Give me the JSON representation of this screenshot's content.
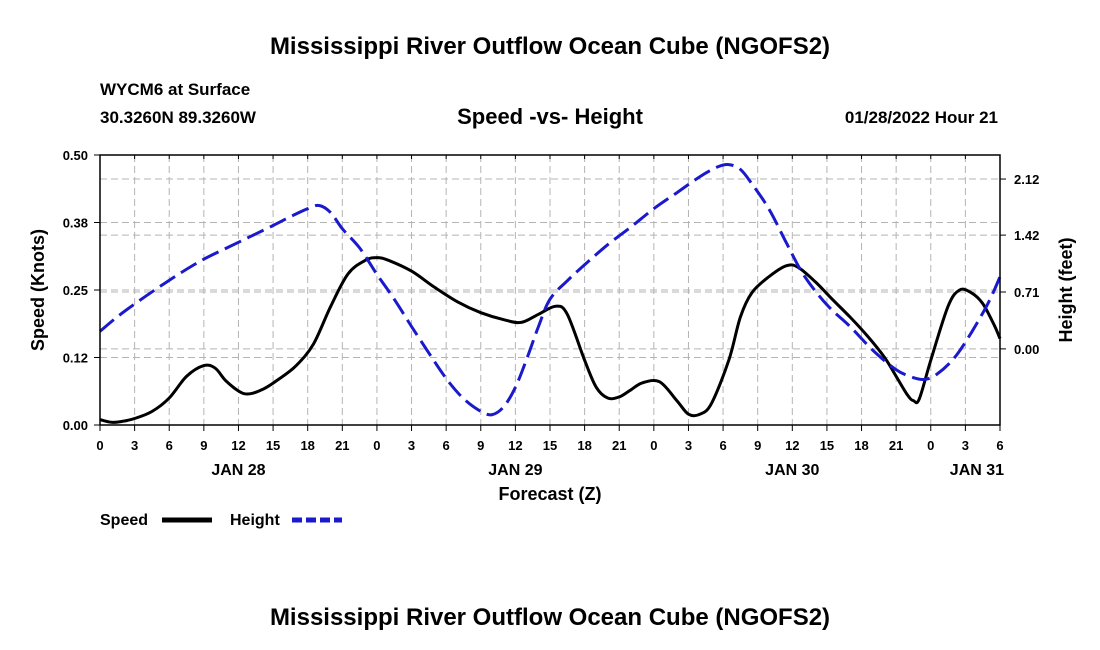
{
  "page": {
    "title_top": "Mississippi River Outflow Ocean Cube (NGOFS2)",
    "station": "WYCM6 at Surface",
    "coords": "30.3260N  89.3260W",
    "datetime": "01/28/2022 Hour 21",
    "title_bottom": "Mississippi River Outflow Ocean Cube (NGOFS2)"
  },
  "chart_data": {
    "type": "line",
    "title": "Speed -vs- Height",
    "xlabel": "Forecast (Z)",
    "ylabel_left": "Speed (Knots)",
    "ylabel_right": "Height (feet)",
    "x_range": [
      0,
      78
    ],
    "ylim_left": [
      0,
      0.5
    ],
    "ylim_right": [
      -0.95,
      2.42
    ],
    "grid": true,
    "legend_position": "bottom-left",
    "x_ticks": [
      {
        "x": 0,
        "label": "0"
      },
      {
        "x": 3,
        "label": "3"
      },
      {
        "x": 6,
        "label": "6"
      },
      {
        "x": 9,
        "label": "9"
      },
      {
        "x": 12,
        "label": "12"
      },
      {
        "x": 15,
        "label": "15"
      },
      {
        "x": 18,
        "label": "18"
      },
      {
        "x": 21,
        "label": "21"
      },
      {
        "x": 24,
        "label": "0"
      },
      {
        "x": 27,
        "label": "3"
      },
      {
        "x": 30,
        "label": "6"
      },
      {
        "x": 33,
        "label": "9"
      },
      {
        "x": 36,
        "label": "12"
      },
      {
        "x": 39,
        "label": "15"
      },
      {
        "x": 42,
        "label": "18"
      },
      {
        "x": 45,
        "label": "21"
      },
      {
        "x": 48,
        "label": "0"
      },
      {
        "x": 51,
        "label": "3"
      },
      {
        "x": 54,
        "label": "6"
      },
      {
        "x": 57,
        "label": "9"
      },
      {
        "x": 60,
        "label": "12"
      },
      {
        "x": 63,
        "label": "15"
      },
      {
        "x": 66,
        "label": "18"
      },
      {
        "x": 69,
        "label": "21"
      },
      {
        "x": 72,
        "label": "0"
      },
      {
        "x": 75,
        "label": "3"
      },
      {
        "x": 78,
        "label": "6"
      }
    ],
    "date_labels": [
      {
        "x": 12,
        "label": "JAN 28"
      },
      {
        "x": 36,
        "label": "JAN 29"
      },
      {
        "x": 60,
        "label": "JAN 30"
      },
      {
        "x": 76,
        "label": "JAN 31"
      }
    ],
    "y_ticks_left": [
      {
        "v": 0.0,
        "label": "0.00"
      },
      {
        "v": 0.125,
        "label": "0.12"
      },
      {
        "v": 0.25,
        "label": "0.25"
      },
      {
        "v": 0.375,
        "label": "0.38"
      },
      {
        "v": 0.5,
        "label": "0.50"
      }
    ],
    "y_ticks_right": [
      {
        "v": 0.0,
        "label": "0.00"
      },
      {
        "v": 0.71,
        "label": "0.71"
      },
      {
        "v": 1.42,
        "label": "1.42"
      },
      {
        "v": 2.12,
        "label": "2.12"
      }
    ],
    "series": [
      {
        "name": "Speed",
        "axis": "left",
        "color": "#000000",
        "dash": "solid",
        "x": [
          0,
          1,
          2,
          3,
          4.5,
          6,
          7.5,
          9,
          10,
          11,
          12.5,
          14,
          15.5,
          17,
          18.5,
          20,
          21.5,
          23,
          24,
          25,
          27,
          29,
          31,
          33,
          35,
          36.5,
          38,
          39.5,
          40.5,
          42,
          43,
          44,
          45,
          46,
          47,
          48.5,
          50,
          51,
          52,
          53,
          54.5,
          55.5,
          56.5,
          58,
          59.5,
          60.5,
          62,
          63.5,
          65,
          66.5,
          68,
          69,
          70,
          70.5,
          71,
          72,
          73.5,
          74.5,
          75.5,
          76.5,
          77.5,
          78
        ],
        "values": [
          0.01,
          0.005,
          0.007,
          0.012,
          0.025,
          0.05,
          0.09,
          0.11,
          0.105,
          0.08,
          0.058,
          0.065,
          0.085,
          0.11,
          0.15,
          0.22,
          0.28,
          0.305,
          0.31,
          0.305,
          0.285,
          0.255,
          0.228,
          0.208,
          0.195,
          0.19,
          0.205,
          0.22,
          0.205,
          0.12,
          0.07,
          0.05,
          0.052,
          0.065,
          0.078,
          0.08,
          0.045,
          0.02,
          0.02,
          0.04,
          0.12,
          0.2,
          0.245,
          0.275,
          0.295,
          0.292,
          0.265,
          0.232,
          0.2,
          0.165,
          0.125,
          0.09,
          0.055,
          0.045,
          0.048,
          0.12,
          0.22,
          0.25,
          0.245,
          0.225,
          0.185,
          0.16
        ]
      },
      {
        "name": "Height",
        "axis": "right",
        "color": "#1a1acc",
        "dash": "dashed",
        "x": [
          0,
          1.5,
          3,
          5,
          7,
          9,
          11,
          13,
          15,
          16.5,
          18,
          19,
          20,
          21,
          22.5,
          24,
          25.5,
          27,
          28.5,
          30,
          31.5,
          33,
          34,
          35,
          36,
          37,
          38,
          39,
          40.5,
          42,
          44,
          46,
          48,
          50,
          52,
          53.5,
          54.5,
          55.5,
          56.5,
          58,
          59.5,
          61,
          63,
          65,
          67,
          69,
          70.5,
          71.5,
          72.5,
          74,
          75.5,
          77,
          78
        ],
        "values": [
          0.22,
          0.4,
          0.56,
          0.76,
          0.95,
          1.12,
          1.26,
          1.4,
          1.54,
          1.65,
          1.75,
          1.79,
          1.7,
          1.5,
          1.26,
          0.93,
          0.62,
          0.28,
          -0.05,
          -0.37,
          -0.62,
          -0.78,
          -0.82,
          -0.72,
          -0.48,
          -0.12,
          0.28,
          0.62,
          0.85,
          1.05,
          1.3,
          1.52,
          1.75,
          1.95,
          2.15,
          2.27,
          2.3,
          2.24,
          2.06,
          1.74,
          1.32,
          0.92,
          0.55,
          0.28,
          -0.02,
          -0.26,
          -0.36,
          -0.38,
          -0.32,
          -0.12,
          0.2,
          0.58,
          0.9
        ]
      }
    ],
    "legend": [
      {
        "label": "Speed",
        "color": "#000000",
        "dash": "solid"
      },
      {
        "label": "Height",
        "color": "#1a1acc",
        "dash": "dashed"
      }
    ]
  }
}
